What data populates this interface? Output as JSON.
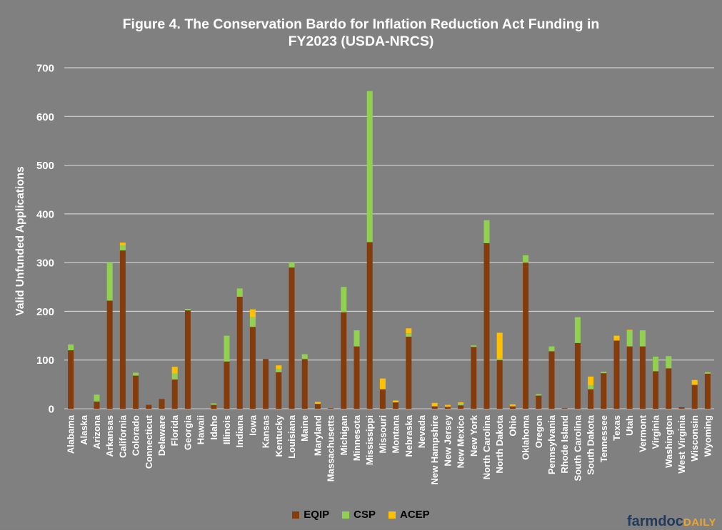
{
  "chart_data": {
    "type": "bar",
    "stacked": true,
    "title": "Figure 4. The Conservation Bardo for Inflation Reduction Act Funding in FY2023 (USDA-NRCS)",
    "title_lines": [
      "Figure 4. The Conservation Bardo for Inflation Reduction Act Funding in",
      "FY2023 (USDA-NRCS)"
    ],
    "xlabel": "",
    "ylabel": "Valid Unfunded Applications",
    "ylim": [
      0,
      700
    ],
    "yticks": [
      0,
      100,
      200,
      300,
      400,
      500,
      600,
      700
    ],
    "grid": true,
    "legend_position": "bottom",
    "categories": [
      "Alabama",
      "Alaska",
      "Arizona",
      "Arkansas",
      "California",
      "Colorado",
      "Connecticut",
      "Delaware",
      "Florida",
      "Georgia",
      "Hawaii",
      "Idaho",
      "Illinois",
      "Indiana",
      "Iowa",
      "Kansas",
      "Kentucky",
      "Louisiana",
      "Maine",
      "Maryland",
      "Massachusetts",
      "Michigan",
      "Minnesota",
      "Mississippi",
      "Missouri",
      "Montana",
      "Nebraska",
      "Nevada",
      "New Hampshire",
      "New Jersey",
      "New Mexico",
      "New York",
      "North Carolina",
      "North Dakota",
      "Ohio",
      "Oklahoma",
      "Oregon",
      "Pennsylvania",
      "Rhode Island",
      "South Carolina",
      "South Dakota",
      "Tennessee",
      "Texas",
      "Utah",
      "Vermont",
      "Virginia",
      "Washington",
      "West Virginia",
      "Wisconsin",
      "Wyoming"
    ],
    "series": [
      {
        "name": "EQIP",
        "color": "#843c0c",
        "values": [
          120,
          0,
          15,
          222,
          325,
          68,
          8,
          20,
          60,
          202,
          0,
          8,
          97,
          230,
          168,
          102,
          75,
          290,
          102,
          10,
          1,
          198,
          128,
          342,
          40,
          13,
          148,
          0,
          5,
          4,
          7,
          127,
          340,
          100,
          5,
          300,
          27,
          118,
          1,
          135,
          40,
          73,
          140,
          128,
          128,
          77,
          83,
          3,
          49,
          72
        ]
      },
      {
        "name": "CSP",
        "color": "#92d050",
        "values": [
          12,
          0,
          14,
          78,
          10,
          6,
          0,
          0,
          12,
          3,
          0,
          3,
          53,
          17,
          20,
          0,
          7,
          10,
          10,
          0,
          0,
          52,
          33,
          310,
          0,
          0,
          7,
          0,
          0,
          0,
          4,
          3,
          47,
          3,
          0,
          15,
          3,
          10,
          0,
          53,
          8,
          3,
          0,
          32,
          33,
          30,
          25,
          0,
          0,
          3
        ]
      },
      {
        "name": "ACEP",
        "color": "#ffc000",
        "values": [
          0,
          0,
          0,
          0,
          6,
          0,
          0,
          0,
          14,
          0,
          0,
          0,
          0,
          0,
          16,
          0,
          7,
          0,
          0,
          4,
          0,
          0,
          0,
          0,
          22,
          4,
          10,
          0,
          7,
          4,
          2,
          0,
          0,
          53,
          4,
          0,
          0,
          0,
          0,
          0,
          18,
          0,
          10,
          2,
          0,
          0,
          0,
          0,
          10,
          0
        ]
      }
    ]
  },
  "logo": {
    "part1": "farmdoc",
    "part2": "DAILY"
  }
}
